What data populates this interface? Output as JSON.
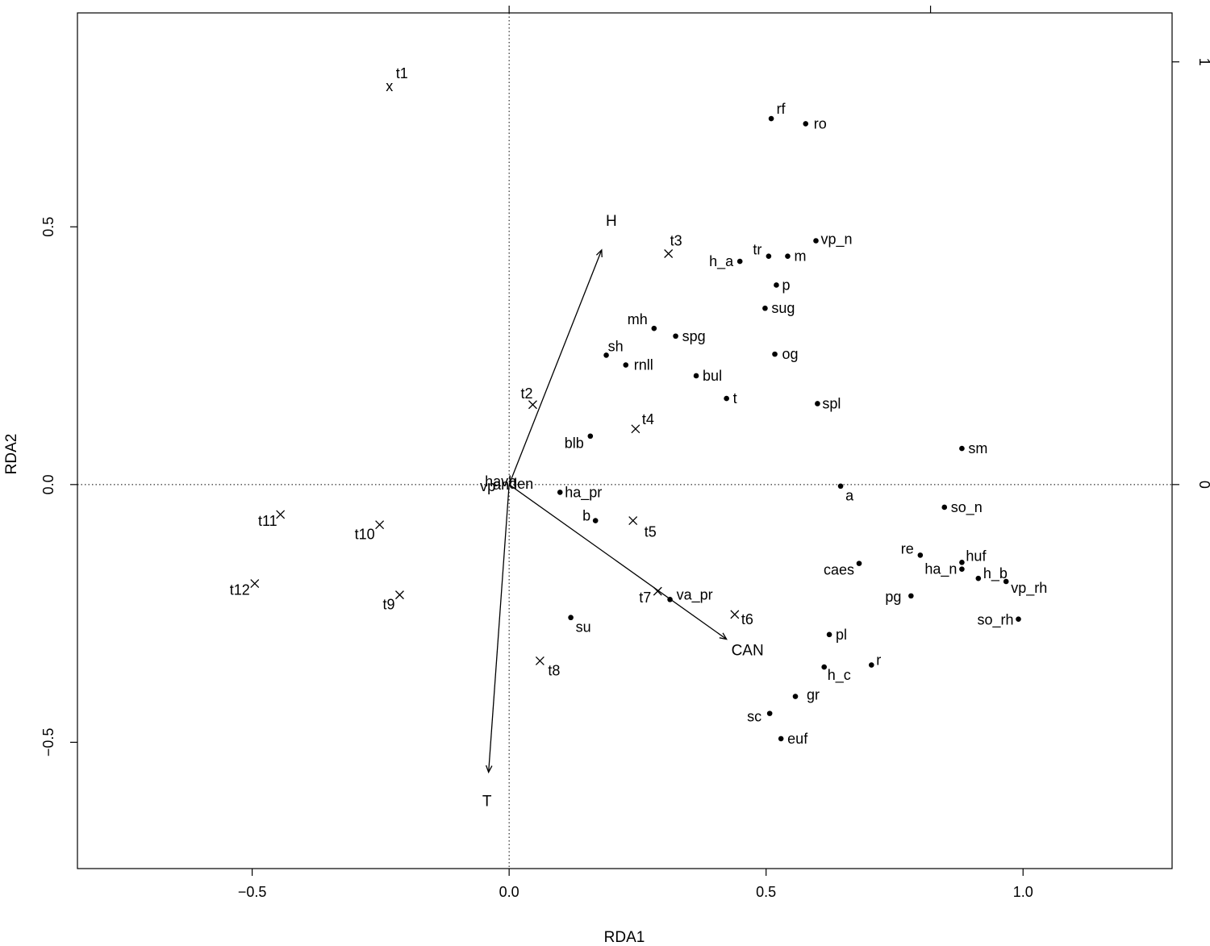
{
  "chart_data": {
    "type": "scatter",
    "title": "",
    "xlabel": "RDA1",
    "ylabel": "RDA2",
    "xlim": [
      -0.84,
      1.29
    ],
    "ylim": [
      -0.745,
      0.915
    ],
    "grid": false,
    "zero_lines": true,
    "bottom_ticks": [
      -0.5,
      0.0,
      0.5,
      1.0
    ],
    "left_ticks": [
      -0.5,
      0.5
    ],
    "left_tick_labels": [
      "−0.5",
      "0.5"
    ],
    "bottom_tick_labels": [
      "−0.5",
      "0.0",
      "0.5",
      "1.0"
    ],
    "left_zero_label": "0.0",
    "right_axis": {
      "ticks": [
        0,
        1
      ],
      "labels": [
        "0",
        "1"
      ],
      "scale": 0.82
    },
    "top_axis": {
      "ticks": [
        0,
        1
      ]
    },
    "species": [
      {
        "label": "rf",
        "x": 0.51,
        "y": 0.71
      },
      {
        "label": "ro",
        "x": 0.577,
        "y": 0.7
      },
      {
        "label": "vp_n",
        "x": 0.597,
        "y": 0.473
      },
      {
        "label": "tr",
        "x": 0.505,
        "y": 0.443
      },
      {
        "label": "m",
        "x": 0.542,
        "y": 0.443
      },
      {
        "label": "h_a",
        "x": 0.449,
        "y": 0.433
      },
      {
        "label": "p",
        "x": 0.52,
        "y": 0.387
      },
      {
        "label": "sug",
        "x": 0.498,
        "y": 0.342
      },
      {
        "label": "mh",
        "x": 0.282,
        "y": 0.303
      },
      {
        "label": "spg",
        "x": 0.324,
        "y": 0.288
      },
      {
        "label": "sh",
        "x": 0.189,
        "y": 0.251
      },
      {
        "label": "og",
        "x": 0.517,
        "y": 0.253
      },
      {
        "label": "rnll",
        "x": 0.227,
        "y": 0.232
      },
      {
        "label": "bul",
        "x": 0.364,
        "y": 0.211
      },
      {
        "label": "t",
        "x": 0.423,
        "y": 0.167
      },
      {
        "label": "spl",
        "x": 0.6,
        "y": 0.157
      },
      {
        "label": "blb",
        "x": 0.158,
        "y": 0.094
      },
      {
        "label": "sm",
        "x": 0.881,
        "y": 0.07
      },
      {
        "label": "a",
        "x": 0.645,
        "y": -0.003
      },
      {
        "label": "ha_pr",
        "x": 0.099,
        "y": -0.015
      },
      {
        "label": "so_n",
        "x": 0.847,
        "y": -0.044
      },
      {
        "label": "b",
        "x": 0.168,
        "y": -0.07
      },
      {
        "label": "re",
        "x": 0.8,
        "y": -0.137
      },
      {
        "label": "huf",
        "x": 0.881,
        "y": -0.151
      },
      {
        "label": "caes",
        "x": 0.681,
        "y": -0.153
      },
      {
        "label": "ha_n",
        "x": 0.881,
        "y": -0.164
      },
      {
        "label": "h_b",
        "x": 0.913,
        "y": -0.182
      },
      {
        "label": "vp_rh",
        "x": 0.967,
        "y": -0.188
      },
      {
        "label": "pg",
        "x": 0.782,
        "y": -0.216
      },
      {
        "label": "va_pr",
        "x": 0.313,
        "y": -0.223
      },
      {
        "label": "su",
        "x": 0.12,
        "y": -0.258
      },
      {
        "label": "so_rh",
        "x": 0.991,
        "y": -0.261
      },
      {
        "label": "pl",
        "x": 0.623,
        "y": -0.291
      },
      {
        "label": "r",
        "x": 0.705,
        "y": -0.35
      },
      {
        "label": "h_c",
        "x": 0.613,
        "y": -0.354
      },
      {
        "label": "gr",
        "x": 0.557,
        "y": -0.411
      },
      {
        "label": "sc",
        "x": 0.507,
        "y": -0.444
      },
      {
        "label": "euf",
        "x": 0.529,
        "y": -0.493
      }
    ],
    "sites": [
      {
        "label": "t1",
        "x": -0.233,
        "y": 0.773
      },
      {
        "label": "t3",
        "x": 0.31,
        "y": 0.448
      },
      {
        "label": "t2",
        "x": 0.046,
        "y": 0.155
      },
      {
        "label": "t4",
        "x": 0.246,
        "y": 0.108
      },
      {
        "label": "t5",
        "x": 0.241,
        "y": -0.07
      },
      {
        "label": "t11",
        "x": -0.445,
        "y": -0.058
      },
      {
        "label": "t10",
        "x": -0.252,
        "y": -0.078
      },
      {
        "label": "t12",
        "x": -0.495,
        "y": -0.192
      },
      {
        "label": "t9",
        "x": -0.213,
        "y": -0.214
      },
      {
        "label": "t7",
        "x": 0.289,
        "y": -0.207
      },
      {
        "label": "t6",
        "x": 0.439,
        "y": -0.252
      },
      {
        "label": "t8",
        "x": 0.06,
        "y": -0.342
      }
    ],
    "biplot": [
      {
        "label": "H",
        "x": 0.18,
        "y": 0.455
      },
      {
        "label": "CAN",
        "x": 0.423,
        "y": -0.3
      },
      {
        "label": "T",
        "x": -0.04,
        "y": -0.558
      }
    ],
    "centre_cluster": [
      "vp",
      "ha",
      "an",
      "vh",
      "den"
    ]
  }
}
